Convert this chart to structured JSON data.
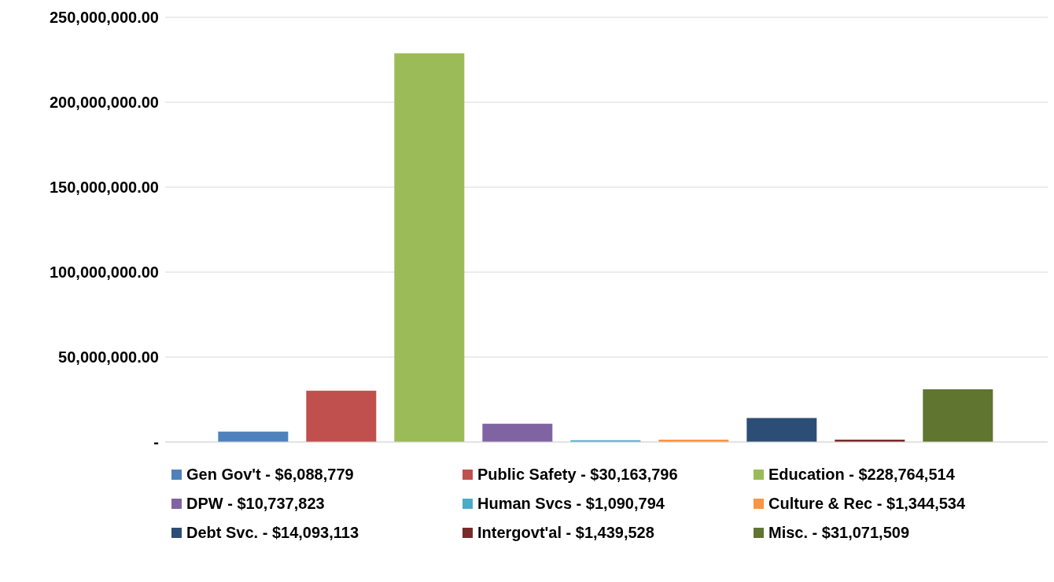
{
  "chart_data": {
    "type": "bar",
    "categories": [
      null
    ],
    "series": [
      {
        "name": "Gen Gov't - $6,088,779",
        "color": "#4f81bd",
        "values": [
          6088779
        ]
      },
      {
        "name": "Public Safety - $30,163,796",
        "color": "#c0504d",
        "values": [
          30163796
        ]
      },
      {
        "name": "Education - $228,764,514",
        "color": "#9bbb59",
        "values": [
          228764514
        ]
      },
      {
        "name": "DPW - $10,737,823",
        "color": "#8064a2",
        "values": [
          10737823
        ]
      },
      {
        "name": "Human Svcs - $1,090,794",
        "color": "#4bacc6",
        "values": [
          1090794
        ]
      },
      {
        "name": "Culture & Rec - $1,344,534",
        "color": "#f79646",
        "values": [
          1344534
        ]
      },
      {
        "name": "Debt Svc. - $14,093,113",
        "color": "#2c4d75",
        "values": [
          14093113
        ]
      },
      {
        "name": "Intergovt'al - $1,439,528",
        "color": "#772c2a",
        "values": [
          1439528
        ]
      },
      {
        "name": "Misc. - $31,071,509",
        "color": "#5f7530",
        "values": [
          31071509
        ]
      }
    ],
    "ylim": [
      0,
      250000000
    ],
    "yticks": [
      {
        "value": 0,
        "label": "-"
      },
      {
        "value": 50000000,
        "label": "50,000,000.00"
      },
      {
        "value": 100000000,
        "label": "100,000,000.00"
      },
      {
        "value": 150000000,
        "label": "150,000,000.00"
      },
      {
        "value": 200000000,
        "label": "200,000,000.00"
      },
      {
        "value": 250000000,
        "label": "250,000,000.00"
      }
    ],
    "grid": "y",
    "legend": "bottom"
  }
}
